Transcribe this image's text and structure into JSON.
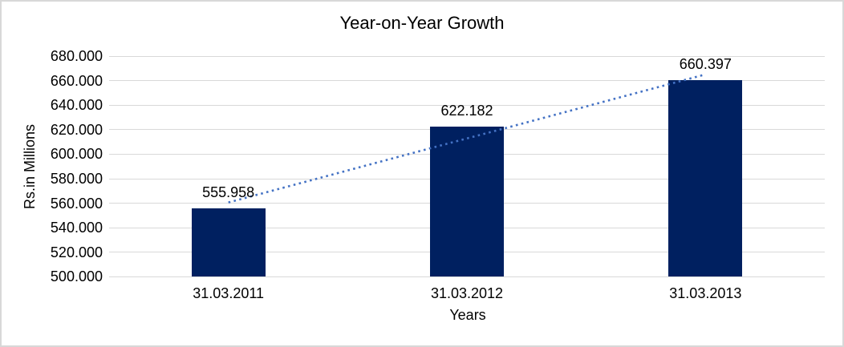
{
  "chart_data": {
    "type": "bar",
    "title": "Year-on-Year Growth",
    "xlabel": "Years",
    "ylabel": "Rs.in Millions",
    "categories": [
      "31.03.2011",
      "31.03.2012",
      "31.03.2013"
    ],
    "values": [
      555.958,
      622.182,
      660.397
    ],
    "data_labels": [
      "555.958",
      "622.182",
      "660.397"
    ],
    "ylim": [
      500,
      680
    ],
    "ytick_step": 20,
    "ytick_labels": [
      "500.000",
      "520.000",
      "540.000",
      "560.000",
      "580.000",
      "600.000",
      "620.000",
      "640.000",
      "660.000",
      "680.000"
    ],
    "grid": true,
    "legend": "none",
    "trendline": {
      "type": "linear",
      "style": "dotted",
      "color": "#4472C4"
    },
    "colors": {
      "bar": "#002060",
      "gridline": "#D9D9D9",
      "text": "#000000",
      "background": "#FFFFFF",
      "frame_border": "#D8D8D8"
    }
  }
}
